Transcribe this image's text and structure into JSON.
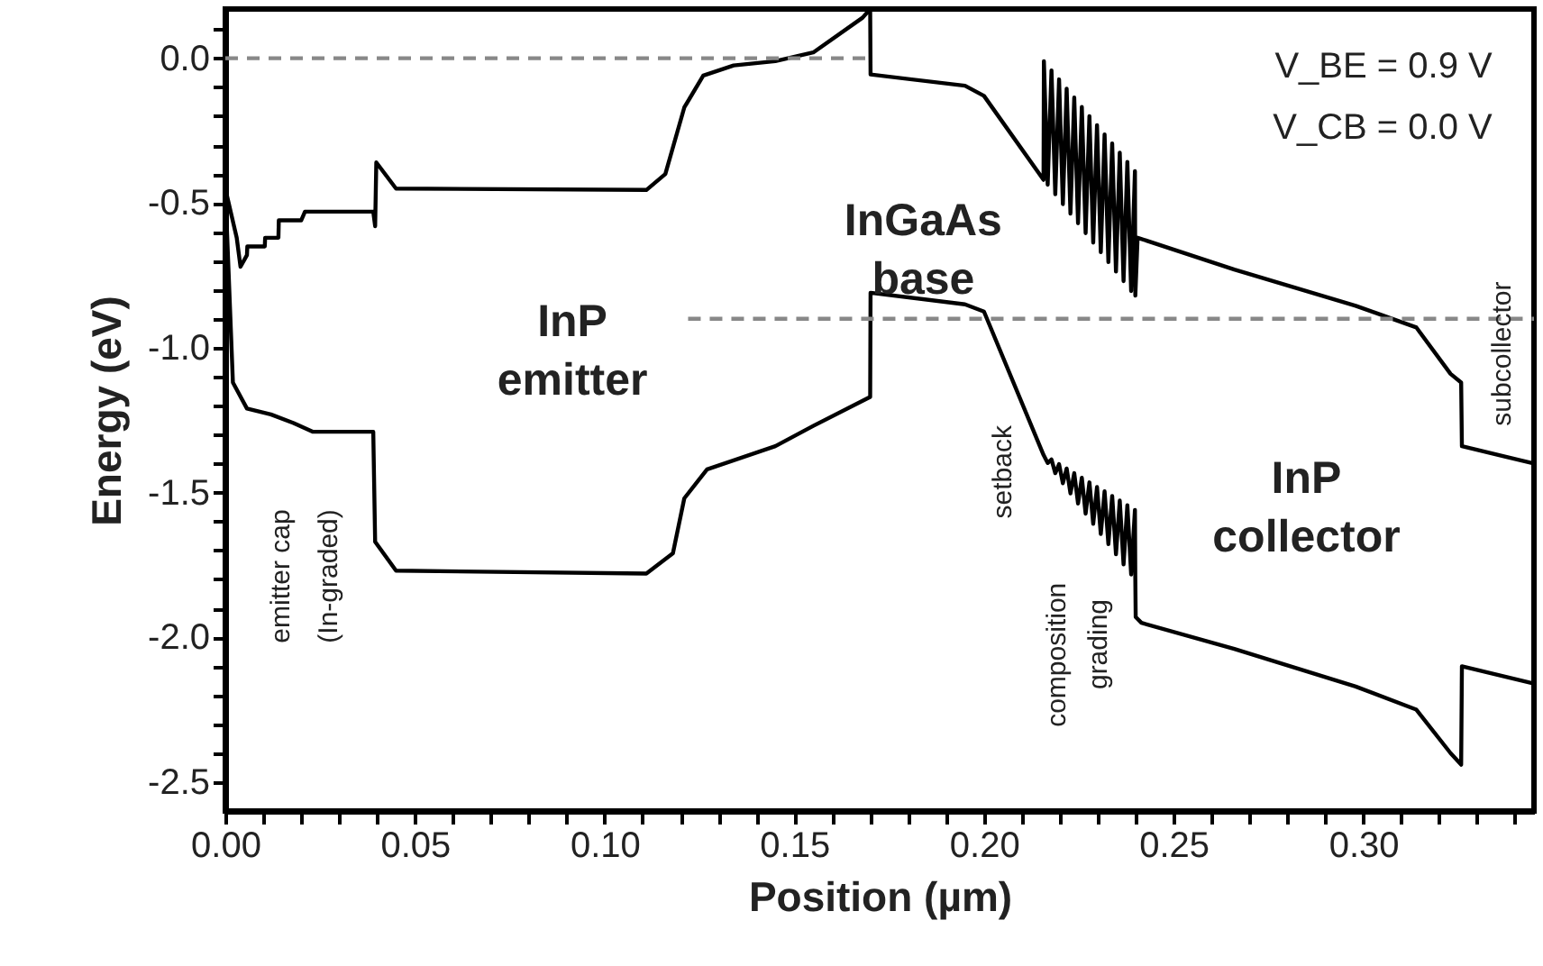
{
  "chart_data": {
    "type": "line",
    "xlabel": "Position (µm)",
    "ylabel": "Energy (eV)",
    "xlim": [
      0,
      0.345
    ],
    "ylim": [
      -2.6,
      0.17
    ],
    "xticks": [
      {
        "value": 0,
        "label": "0.00"
      },
      {
        "value": 0.01,
        "label": null
      },
      {
        "value": 0.02,
        "label": null
      },
      {
        "value": 0.03,
        "label": null
      },
      {
        "value": 0.04,
        "label": null
      },
      {
        "value": 0.05,
        "label": "0.05"
      },
      {
        "value": 0.06,
        "label": null
      },
      {
        "value": 0.07,
        "label": null
      },
      {
        "value": 0.08,
        "label": null
      },
      {
        "value": 0.09,
        "label": null
      },
      {
        "value": 0.1,
        "label": "0.10"
      },
      {
        "value": 0.11,
        "label": null
      },
      {
        "value": 0.12,
        "label": null
      },
      {
        "value": 0.13,
        "label": null
      },
      {
        "value": 0.14,
        "label": null
      },
      {
        "value": 0.15,
        "label": "0.15"
      },
      {
        "value": 0.16,
        "label": null
      },
      {
        "value": 0.17,
        "label": null
      },
      {
        "value": 0.18,
        "label": null
      },
      {
        "value": 0.19,
        "label": null
      },
      {
        "value": 0.2,
        "label": "0.20"
      },
      {
        "value": 0.21,
        "label": null
      },
      {
        "value": 0.22,
        "label": null
      },
      {
        "value": 0.23,
        "label": null
      },
      {
        "value": 0.24,
        "label": null
      },
      {
        "value": 0.25,
        "label": "0.25"
      },
      {
        "value": 0.26,
        "label": null
      },
      {
        "value": 0.27,
        "label": null
      },
      {
        "value": 0.28,
        "label": null
      },
      {
        "value": 0.29,
        "label": null
      },
      {
        "value": 0.3,
        "label": "0.30"
      },
      {
        "value": 0.31,
        "label": null
      },
      {
        "value": 0.32,
        "label": null
      },
      {
        "value": 0.33,
        "label": null
      },
      {
        "value": 0.34,
        "label": null
      }
    ],
    "yticks": [
      {
        "value": -2.5,
        "label": "-2.5"
      },
      {
        "value": -2.4,
        "label": null
      },
      {
        "value": -2.3,
        "label": null
      },
      {
        "value": -2.2,
        "label": null
      },
      {
        "value": -2.1,
        "label": null
      },
      {
        "value": -2.0,
        "label": "-2.0"
      },
      {
        "value": -1.9,
        "label": null
      },
      {
        "value": -1.8,
        "label": null
      },
      {
        "value": -1.7,
        "label": null
      },
      {
        "value": -1.6,
        "label": null
      },
      {
        "value": -1.5,
        "label": "-1.5"
      },
      {
        "value": -1.4,
        "label": null
      },
      {
        "value": -1.3,
        "label": null
      },
      {
        "value": -1.2,
        "label": null
      },
      {
        "value": -1.1,
        "label": null
      },
      {
        "value": -1.0,
        "label": "-1.0"
      },
      {
        "value": -0.9,
        "label": null
      },
      {
        "value": -0.8,
        "label": null
      },
      {
        "value": -0.7,
        "label": null
      },
      {
        "value": -0.6,
        "label": null
      },
      {
        "value": -0.5,
        "label": "-0.5"
      },
      {
        "value": -0.4,
        "label": null
      },
      {
        "value": -0.3,
        "label": null
      },
      {
        "value": -0.2,
        "label": null
      },
      {
        "value": -0.1,
        "label": null
      },
      {
        "value": 0.0,
        "label": "0.0"
      },
      {
        "value": 0.1,
        "label": null
      }
    ],
    "grid": false,
    "marker": "none",
    "series": [
      {
        "color": "#000000",
        "line_style": "solid",
        "x": [
          0,
          0.003,
          0.004,
          0.0057,
          0.0058,
          0.0104,
          0.0105,
          0.014,
          0.0141,
          0.02,
          0.021,
          0.039,
          0.0395,
          0.0398,
          0.045,
          0.111,
          0.116,
          0.121,
          0.126,
          0.134,
          0.145,
          0.155,
          0.168,
          0.17,
          0.1701,
          0.195,
          0.2,
          0.2157,
          0.2158,
          0.2168,
          0.2178,
          0.2188,
          0.2198,
          0.2208,
          0.2218,
          0.2228,
          0.2238,
          0.2248,
          0.2258,
          0.2268,
          0.2278,
          0.2288,
          0.2298,
          0.2308,
          0.2318,
          0.2328,
          0.2338,
          0.2348,
          0.2358,
          0.2368,
          0.2378,
          0.2388,
          0.2398,
          0.2399,
          0.2405,
          0.266,
          0.298,
          0.314,
          0.323,
          0.3258,
          0.326,
          0.345
        ],
        "values": [
          -0.45,
          -0.62,
          -0.72,
          -0.68,
          -0.65,
          -0.65,
          -0.62,
          -0.62,
          -0.56,
          -0.56,
          -0.53,
          -0.53,
          -0.58,
          -0.36,
          -0.45,
          -0.455,
          -0.4,
          -0.17,
          -0.06,
          -0.025,
          -0.01,
          0.02,
          0.14,
          0.17,
          -0.056,
          -0.095,
          -0.13,
          -0.42,
          -0.01,
          -0.437,
          -0.042,
          -0.47,
          -0.073,
          -0.504,
          -0.105,
          -0.537,
          -0.136,
          -0.57,
          -0.168,
          -0.604,
          -0.2,
          -0.637,
          -0.231,
          -0.67,
          -0.263,
          -0.704,
          -0.294,
          -0.737,
          -0.326,
          -0.77,
          -0.358,
          -0.804,
          -0.39,
          -0.82,
          -0.62,
          -0.73,
          -0.855,
          -0.93,
          -1.09,
          -1.12,
          -1.34,
          -1.4
        ]
      },
      {
        "color": "#000000",
        "line_style": "solid",
        "x": [
          0,
          0.002,
          0.0057,
          0.012,
          0.018,
          0.023,
          0.039,
          0.0395,
          0.045,
          0.111,
          0.118,
          0.121,
          0.127,
          0.145,
          0.155,
          0.17,
          0.1701,
          0.195,
          0.2,
          0.2157,
          0.2168,
          0.2178,
          0.2188,
          0.2198,
          0.2208,
          0.2218,
          0.2228,
          0.2238,
          0.2248,
          0.2258,
          0.2268,
          0.2278,
          0.2288,
          0.2298,
          0.2308,
          0.2318,
          0.2328,
          0.2338,
          0.2348,
          0.2358,
          0.2368,
          0.2378,
          0.2388,
          0.2398,
          0.2399,
          0.24,
          0.2415,
          0.266,
          0.298,
          0.314,
          0.323,
          0.3258,
          0.326,
          0.345
        ],
        "values": [
          -0.45,
          -1.12,
          -1.21,
          -1.23,
          -1.26,
          -1.29,
          -1.29,
          -1.67,
          -1.77,
          -1.78,
          -1.71,
          -1.52,
          -1.42,
          -1.34,
          -1.27,
          -1.17,
          -0.81,
          -0.85,
          -0.875,
          -1.37,
          -1.398,
          -1.386,
          -1.433,
          -1.402,
          -1.468,
          -1.417,
          -1.503,
          -1.433,
          -1.538,
          -1.449,
          -1.573,
          -1.465,
          -1.608,
          -1.481,
          -1.643,
          -1.496,
          -1.678,
          -1.512,
          -1.713,
          -1.528,
          -1.748,
          -1.544,
          -1.783,
          -1.56,
          -1.8,
          -1.93,
          -1.95,
          -2.04,
          -2.17,
          -2.25,
          -2.4,
          -2.44,
          -2.1,
          -2.16
        ]
      },
      {
        "color": "#888888",
        "line_style": "dashed",
        "x": [
          0,
          0.17
        ],
        "values": [
          0,
          0
        ]
      },
      {
        "color": "#888888",
        "line_style": "dashed",
        "x": [
          0.122,
          0.345
        ],
        "values": [
          -0.9,
          -0.9
        ]
      }
    ],
    "annotations": [
      "InP emitter",
      "InGaAs base",
      "InP collector",
      "V_BE = 0.9 V",
      "V_CB = 0.0 V",
      "emitter cap",
      "(In-graded)",
      "setback",
      "composition",
      "grading",
      "subcollector"
    ]
  }
}
